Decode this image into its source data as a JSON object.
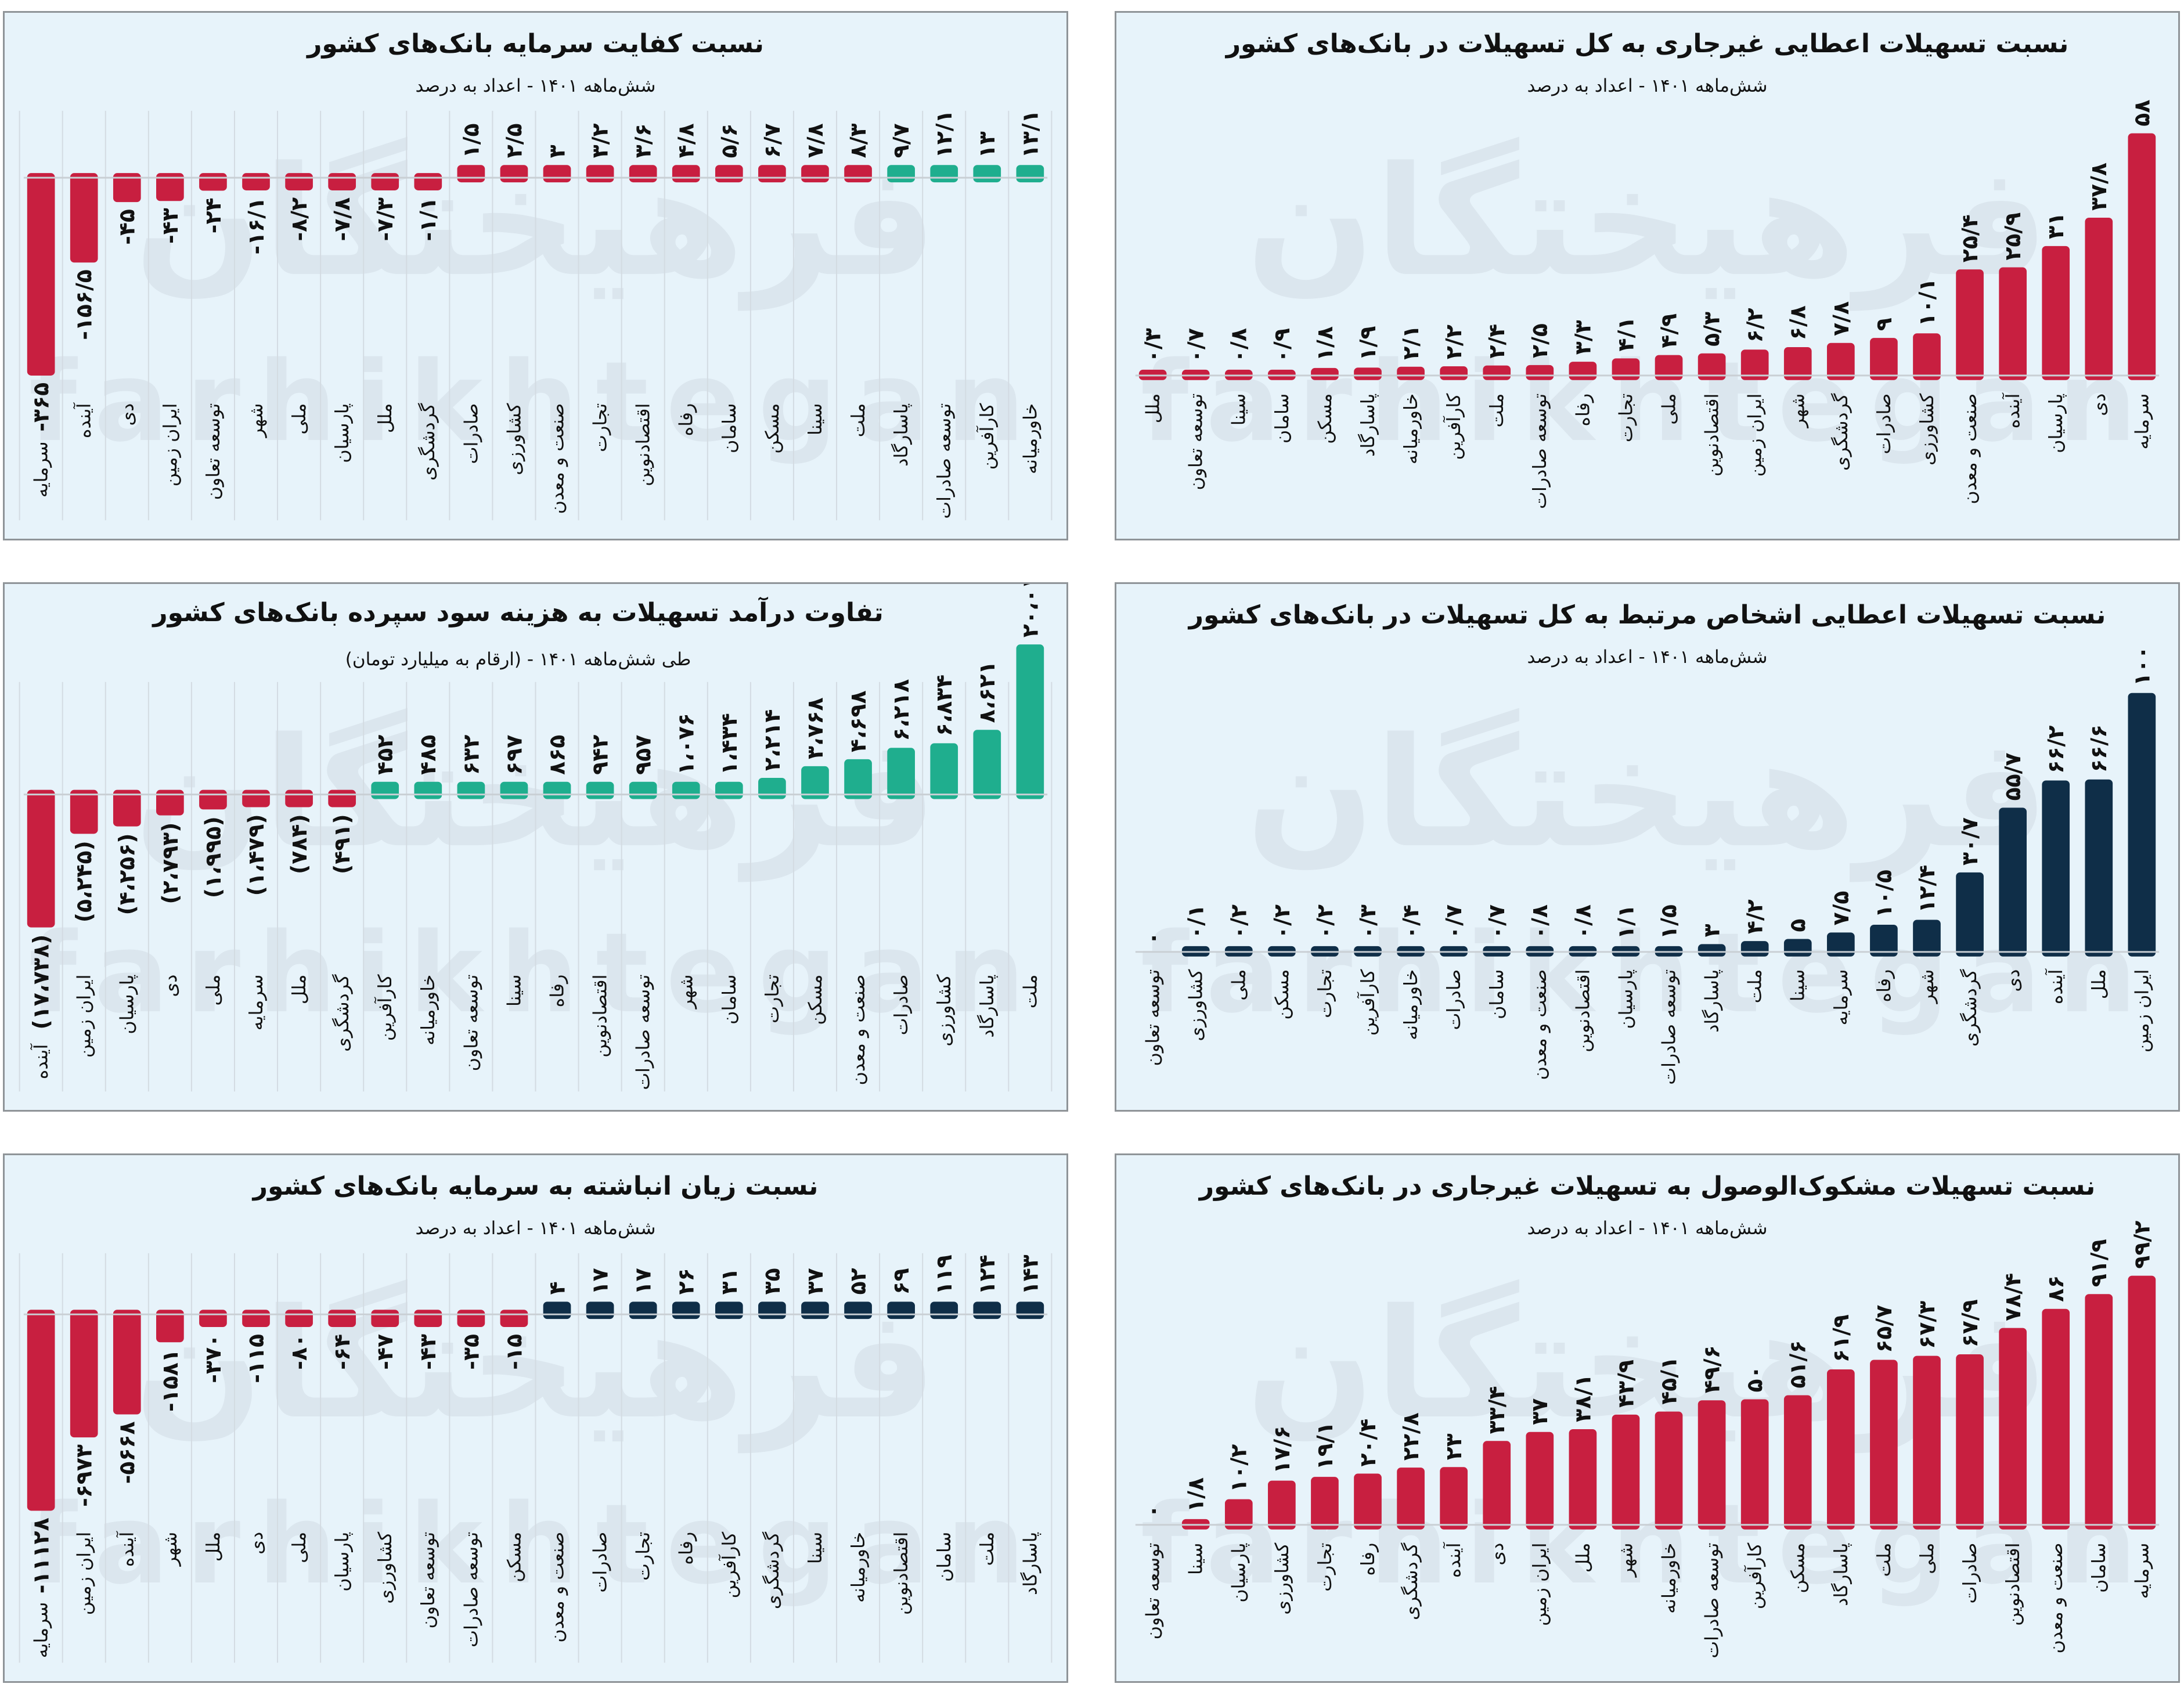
{
  "watermark": {
    "fa": "فرهیختگان",
    "en": "farhikhtegan"
  },
  "chart_data": [
    {
      "id": "npl-ratio",
      "type": "bar",
      "title": "نسبت تسهیلات اعطایی غیرجاری به کل تسهیلات در بانک‌های کشور",
      "subtitle": "شش‌ماهه ۱۴۰۱ - اعداد به درصد",
      "categories": [
        "ملل",
        "توسعه تعاون",
        "سینا",
        "سامان",
        "مسکن",
        "پاسارگاد",
        "خاورمیانه",
        "کارآفرین",
        "ملت",
        "توسعه صادرات",
        "رفاه",
        "تجارت",
        "ملی",
        "اقتصادنوین",
        "ایران زمین",
        "شهر",
        "گردشگری",
        "صادرات",
        "کشاورزی",
        "صنعت و معدن",
        "آینده",
        "پارسیان",
        "دی",
        "سرمایه"
      ],
      "values": [
        0.3,
        0.7,
        0.8,
        0.9,
        1.8,
        1.9,
        2.1,
        2.2,
        2.4,
        2.5,
        3.3,
        4.1,
        4.9,
        5.3,
        6.2,
        6.8,
        7.8,
        9,
        10.1,
        25.4,
        25.9,
        31,
        37.8,
        58
      ],
      "value_format": "decimal",
      "colors": {
        "positive": "#c81f40",
        "negative": "#c81f40"
      },
      "grid": false
    },
    {
      "id": "capital-adequacy",
      "type": "bar",
      "title": "نسبت کفایت سرمایه بانک‌های کشور",
      "subtitle": "شش‌ماهه ۱۴۰۱ - اعداد به درصد",
      "categories": [
        "سرمایه",
        "آینده",
        "دی",
        "ایران زمین",
        "توسعه تعاون",
        "شهر",
        "ملی",
        "پارسیان",
        "ملل",
        "گردشگری",
        "صادرات",
        "کشاورزی",
        "صنعت و معدن",
        "تجارت",
        "اقتصادنوین",
        "رفاه",
        "سامان",
        "مسکن",
        "سینا",
        "ملت",
        "پاسارگاد",
        "توسعه صادرات",
        "کارآفرین",
        "خاورمیانه"
      ],
      "values": [
        -365,
        -156.5,
        -45,
        -43,
        -24,
        -16.1,
        -8.2,
        -7.8,
        -7.3,
        -1.1,
        1.5,
        2.5,
        3,
        3.2,
        3.6,
        4.8,
        5.6,
        6.7,
        7.8,
        8.3,
        9.7,
        12.1,
        13,
        13.1
      ],
      "value_format": "decimal",
      "bar_colors": [
        "#c81f40",
        "#c81f40",
        "#c81f40",
        "#c81f40",
        "#c81f40",
        "#c81f40",
        "#c81f40",
        "#c81f40",
        "#c81f40",
        "#c81f40",
        "#c81f40",
        "#c81f40",
        "#c81f40",
        "#c81f40",
        "#c81f40",
        "#c81f40",
        "#c81f40",
        "#c81f40",
        "#c81f40",
        "#c81f40",
        "#1fae8e",
        "#1fae8e",
        "#1fae8e",
        "#1fae8e"
      ],
      "grid": true
    },
    {
      "id": "related-party-loans",
      "type": "bar",
      "title": "نسبت تسهیلات اعطایی اشخاص مرتبط به کل تسهیلات در بانک‌های کشور",
      "subtitle": "شش‌ماهه ۱۴۰۱ - اعداد به درصد",
      "categories": [
        "توسعه تعاون",
        "کشاورزی",
        "ملی",
        "مسکن",
        "تجارت",
        "کارآفرین",
        "خاورمیانه",
        "صادرات",
        "سامان",
        "صنعت و معدن",
        "اقتصادنوین",
        "پارسیان",
        "توسعه صادرات",
        "پاسارگاد",
        "ملت",
        "سینا",
        "سرمایه",
        "رفاه",
        "شهر",
        "گردشگری",
        "دی",
        "آینده",
        "ملل",
        "ایران زمین"
      ],
      "values": [
        0,
        0.1,
        0.2,
        0.2,
        0.2,
        0.3,
        0.4,
        0.7,
        0.7,
        0.8,
        0.8,
        1.1,
        1.5,
        3,
        4.2,
        5,
        7.5,
        10.5,
        12.4,
        30.7,
        55.7,
        66.2,
        66.6,
        100
      ],
      "value_format": "decimal",
      "colors": {
        "positive": "#0f2e48",
        "negative": "#0f2e48"
      },
      "grid": false
    },
    {
      "id": "interest-spread",
      "type": "bar",
      "title": "تفاوت درآمد تسهیلات به هزینه سود سپرده بانک‌های کشور",
      "subtitle": "طی شش‌ماهه ۱۴۰۱ - (ارقام به میلیارد تومان)",
      "categories": [
        "آینده",
        "ایران زمین",
        "پارسیان",
        "دی",
        "ملی",
        "سرمایه",
        "ملل",
        "گردشگری",
        "کارآفرین",
        "خاورمیانه",
        "توسعه تعاون",
        "سینا",
        "رفاه",
        "اقتصادنوین",
        "توسعه صادرات",
        "شهر",
        "سامان",
        "تجارت",
        "مسکن",
        "صنعت و معدن",
        "صادرات",
        "کشاورزی",
        "پاسارگاد",
        "ملت"
      ],
      "values": [
        -17738,
        -5245,
        -4256,
        -2793,
        -1995,
        -1479,
        -784,
        -491,
        452,
        485,
        632,
        697,
        865,
        942,
        957,
        1076,
        1434,
        2214,
        3768,
        4698,
        6218,
        6834,
        8621,
        20010
      ],
      "value_format": "thousands-parentheses",
      "colors": {
        "positive": "#1fae8e",
        "negative": "#c81f40"
      },
      "grid": true
    },
    {
      "id": "doubtful-to-npl",
      "type": "bar",
      "title": "نسبت تسهیلات مشکوک‌الوصول به تسهیلات غیرجاری در بانک‌های کشور",
      "subtitle": "شش‌ماهه ۱۴۰۱ - اعداد به درصد",
      "categories": [
        "توسعه تعاون",
        "سینا",
        "پارسیان",
        "کشاورزی",
        "تجارت",
        "رفاه",
        "گردشگری",
        "آینده",
        "دی",
        "ایران زمین",
        "ملل",
        "شهر",
        "خاورمیانه",
        "توسعه صادرات",
        "کارآفرین",
        "مسکن",
        "پاسارگاد",
        "ملت",
        "ملی",
        "صادرات",
        "اقتصادنوین",
        "صنعت و معدن",
        "سامان",
        "سرمایه"
      ],
      "values": [
        0,
        1.8,
        10.2,
        17.6,
        19.1,
        20.4,
        22.8,
        23,
        33.4,
        37,
        38.1,
        43.9,
        45.1,
        49.6,
        50,
        51.6,
        61.9,
        65.7,
        67.3,
        67.9,
        78.4,
        86,
        91.9,
        99.2
      ],
      "value_format": "decimal",
      "colors": {
        "positive": "#c81f40",
        "negative": "#c81f40"
      },
      "grid": false
    },
    {
      "id": "accumulated-loss",
      "type": "bar",
      "title": "نسبت زیان انباشته به سرمایه بانک‌های کشور",
      "subtitle": "شش‌ماهه ۱۴۰۱ - اعداد به درصد",
      "categories": [
        "سرمایه",
        "ایران زمین",
        "آینده",
        "شهر",
        "ملل",
        "دی",
        "ملی",
        "پارسیان",
        "کشاورزی",
        "توسعه تعاون",
        "توسعه صادرات",
        "مسکن",
        "صنعت و معدن",
        "صادرات",
        "تجارت",
        "رفاه",
        "کارآفرین",
        "گردشگری",
        "سینا",
        "خاورمیانه",
        "اقتصادنوین",
        "سامان",
        "ملت",
        "پاسارگاد"
      ],
      "values": [
        -11128,
        -6973,
        -5668,
        -1581,
        -370,
        -115,
        -80,
        -64,
        -47,
        -43,
        -35,
        -15,
        4,
        17,
        17,
        26,
        31,
        35,
        37,
        52,
        69,
        119,
        124,
        143
      ],
      "value_format": "integer",
      "colors": {
        "positive": "#0f2e48",
        "negative": "#c81f40"
      },
      "grid": true
    }
  ]
}
